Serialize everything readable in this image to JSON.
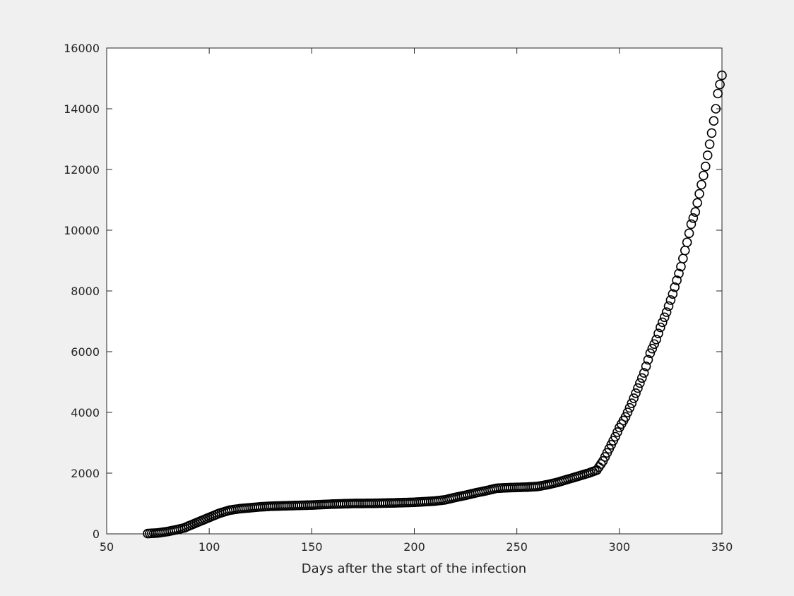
{
  "colors": {
    "figure_background": "#f0f0f0",
    "plot_background": "#ffffff",
    "axis": "#262626",
    "marker": "#000000"
  },
  "chart_data": {
    "type": "scatter",
    "marker": "circle-open",
    "title": "",
    "xlabel": "Days after the start of the infection",
    "ylabel": "",
    "xlim": [
      50,
      350
    ],
    "ylim": [
      0,
      16000
    ],
    "xticks": [
      50,
      100,
      150,
      200,
      250,
      300,
      350
    ],
    "yticks": [
      0,
      2000,
      4000,
      6000,
      8000,
      10000,
      12000,
      14000,
      16000
    ],
    "grid": false,
    "anchors": [
      [
        70,
        10
      ],
      [
        75,
        30
      ],
      [
        80,
        80
      ],
      [
        85,
        150
      ],
      [
        88,
        200
      ],
      [
        90,
        260
      ],
      [
        95,
        400
      ],
      [
        100,
        540
      ],
      [
        105,
        680
      ],
      [
        110,
        780
      ],
      [
        115,
        830
      ],
      [
        120,
        860
      ],
      [
        125,
        890
      ],
      [
        130,
        910
      ],
      [
        140,
        930
      ],
      [
        150,
        950
      ],
      [
        160,
        980
      ],
      [
        170,
        1000
      ],
      [
        180,
        1005
      ],
      [
        190,
        1020
      ],
      [
        200,
        1040
      ],
      [
        210,
        1080
      ],
      [
        215,
        1120
      ],
      [
        220,
        1200
      ],
      [
        225,
        1270
      ],
      [
        230,
        1350
      ],
      [
        235,
        1420
      ],
      [
        240,
        1500
      ],
      [
        245,
        1520
      ],
      [
        250,
        1530
      ],
      [
        255,
        1540
      ],
      [
        260,
        1560
      ],
      [
        265,
        1620
      ],
      [
        270,
        1700
      ],
      [
        275,
        1800
      ],
      [
        280,
        1900
      ],
      [
        285,
        2000
      ],
      [
        289,
        2100
      ],
      [
        292,
        2400
      ],
      [
        295,
        2800
      ],
      [
        298,
        3200
      ],
      [
        300,
        3500
      ],
      [
        303,
        3850
      ],
      [
        306,
        4300
      ],
      [
        309,
        4800
      ],
      [
        312,
        5300
      ],
      [
        315,
        5950
      ],
      [
        318,
        6400
      ],
      [
        320,
        6800
      ],
      [
        323,
        7300
      ],
      [
        326,
        7900
      ],
      [
        330,
        8800
      ],
      [
        333,
        9600
      ],
      [
        335,
        10200
      ],
      [
        337,
        10600
      ],
      [
        340,
        11500
      ],
      [
        342,
        12100
      ],
      [
        345,
        13200
      ],
      [
        347,
        14000
      ],
      [
        348,
        14500
      ],
      [
        349,
        14800
      ],
      [
        350,
        15100
      ]
    ]
  }
}
